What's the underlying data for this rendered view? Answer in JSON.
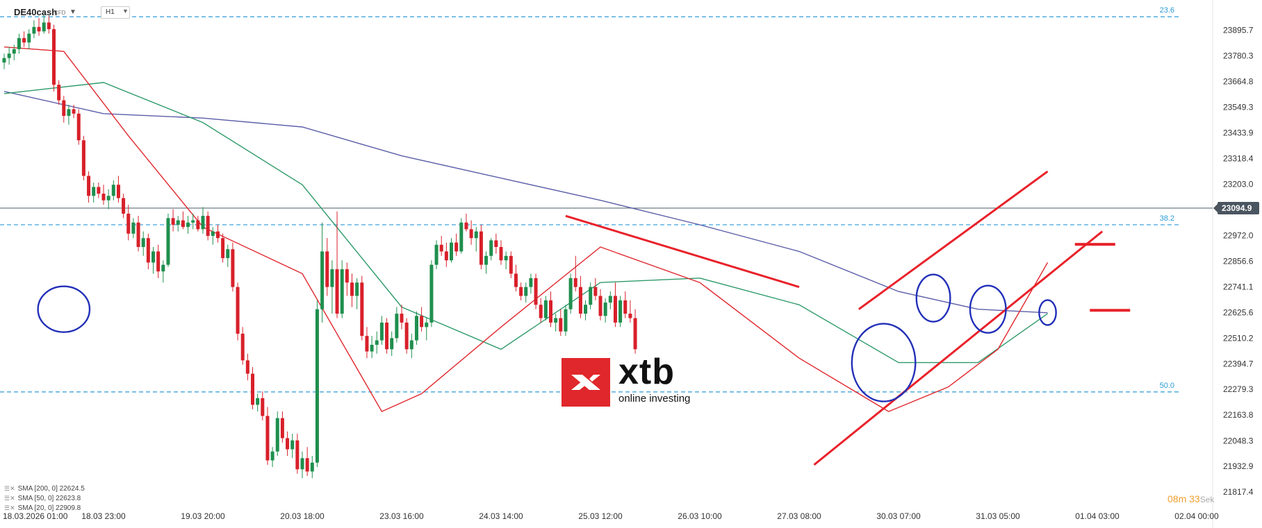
{
  "header": {
    "symbol": "DE40cash",
    "symbol_type": "CFD",
    "timeframe": "H1"
  },
  "legend": [
    {
      "label": "SMA [200, 0] 22624.5",
      "color": "#5a5ea8"
    },
    {
      "label": "SMA [50, 0] 22623.8",
      "color": "#2e9a6a"
    },
    {
      "label": "SMA [20, 0] 22909.8",
      "color": "#e0282e"
    }
  ],
  "timer": {
    "minutes": "08",
    "min_unit": "m",
    "seconds": "33",
    "sec_unit": "Sek"
  },
  "logo": {
    "name": "xtb",
    "tagline": "online investing"
  },
  "chart_data": {
    "type": "candlestick",
    "y_axis": {
      "ticks": [
        "23895.7",
        "23780.3",
        "23664.8",
        "23549.3",
        "23433.9",
        "23318.4",
        "23203.0",
        "23094.9",
        "22972.0",
        "22856.6",
        "22741.1",
        "22625.6",
        "22510.2",
        "22394.7",
        "22279.3",
        "22163.8",
        "22048.3",
        "21932.9",
        "21817.4"
      ],
      "tick_values": [
        23895.7,
        23780.3,
        23664.8,
        23549.3,
        23433.9,
        23318.4,
        23203.0,
        22972.0,
        22856.6,
        22741.1,
        22625.6,
        22510.2,
        22394.7,
        22279.3,
        22163.8,
        22048.3,
        21932.9,
        21817.4
      ],
      "range": [
        21790,
        24000
      ]
    },
    "current_price": {
      "label": "23094.9",
      "value": 23094.9
    },
    "x_axis": {
      "labels": [
        "18.03.2026 01:00",
        "18.03 23:00",
        "19.03 20:00",
        "20.03 18:00",
        "23.03 16:00",
        "24.03 14:00",
        "25.03 12:00",
        "26.03 10:00",
        "27.03 08:00",
        "30.03 07:00",
        "31.03 05:00",
        "01.04 03:00",
        "02.04 00:00"
      ],
      "positions_bar_index": [
        0,
        20,
        40,
        60,
        80,
        100,
        120,
        140,
        160,
        180,
        200,
        220,
        240
      ]
    },
    "fibonacci": [
      {
        "label": "23.6",
        "value": 23956
      },
      {
        "label": "38.2",
        "value": 23020
      },
      {
        "label": "50.0",
        "value": 22268
      }
    ],
    "sma": [
      {
        "name": "SMA [200, 0]",
        "color": "#5a5ea8",
        "points": [
          [
            0,
            23620
          ],
          [
            20,
            23520
          ],
          [
            40,
            23500
          ],
          [
            60,
            23460
          ],
          [
            80,
            23330
          ],
          [
            100,
            23230
          ],
          [
            120,
            23130
          ],
          [
            140,
            23020
          ],
          [
            160,
            22900
          ],
          [
            180,
            22720
          ],
          [
            196,
            22640
          ],
          [
            210,
            22624
          ]
        ]
      },
      {
        "name": "SMA [50, 0]",
        "color": "#2e9a6a",
        "points": [
          [
            0,
            23610
          ],
          [
            20,
            23660
          ],
          [
            40,
            23480
          ],
          [
            60,
            23200
          ],
          [
            80,
            22650
          ],
          [
            100,
            22460
          ],
          [
            120,
            22760
          ],
          [
            140,
            22780
          ],
          [
            160,
            22660
          ],
          [
            180,
            22400
          ],
          [
            196,
            22400
          ],
          [
            210,
            22620
          ]
        ]
      },
      {
        "name": "SMA [20, 0]",
        "color": "#e0282e",
        "points": [
          [
            0,
            23820
          ],
          [
            12,
            23800
          ],
          [
            25,
            23420
          ],
          [
            40,
            23010
          ],
          [
            60,
            22800
          ],
          [
            76,
            22180
          ],
          [
            84,
            22260
          ],
          [
            100,
            22560
          ],
          [
            120,
            22920
          ],
          [
            140,
            22760
          ],
          [
            160,
            22420
          ],
          [
            178,
            22180
          ],
          [
            190,
            22290
          ],
          [
            200,
            22460
          ],
          [
            210,
            22850
          ]
        ]
      }
    ],
    "ohlc": [
      [
        23750,
        23790,
        23720,
        23770
      ],
      [
        23770,
        23820,
        23740,
        23790
      ],
      [
        23790,
        23830,
        23760,
        23810
      ],
      [
        23810,
        23880,
        23790,
        23860
      ],
      [
        23860,
        23890,
        23820,
        23840
      ],
      [
        23840,
        23900,
        23810,
        23880
      ],
      [
        23880,
        23940,
        23860,
        23910
      ],
      [
        23910,
        23950,
        23870,
        23890
      ],
      [
        23890,
        23970,
        23880,
        23930
      ],
      [
        23930,
        23960,
        23880,
        23900
      ],
      [
        23900,
        23920,
        23620,
        23650
      ],
      [
        23650,
        23670,
        23560,
        23580
      ],
      [
        23580,
        23600,
        23480,
        23510
      ],
      [
        23510,
        23560,
        23470,
        23540
      ],
      [
        23540,
        23560,
        23500,
        23520
      ],
      [
        23520,
        23540,
        23380,
        23400
      ],
      [
        23400,
        23420,
        23220,
        23240
      ],
      [
        23240,
        23260,
        23120,
        23150
      ],
      [
        23150,
        23210,
        23120,
        23190
      ],
      [
        23190,
        23210,
        23140,
        23160
      ],
      [
        23160,
        23200,
        23110,
        23130
      ],
      [
        23130,
        23180,
        23090,
        23150
      ],
      [
        23150,
        23220,
        23130,
        23200
      ],
      [
        23200,
        23240,
        23120,
        23140
      ],
      [
        23140,
        23160,
        23050,
        23070
      ],
      [
        23070,
        23110,
        22950,
        22980
      ],
      [
        22980,
        23050,
        22960,
        23030
      ],
      [
        23030,
        23060,
        22900,
        22920
      ],
      [
        22920,
        22990,
        22880,
        22960
      ],
      [
        22960,
        22980,
        22820,
        22850
      ],
      [
        22850,
        22920,
        22800,
        22900
      ],
      [
        22900,
        22930,
        22780,
        22810
      ],
      [
        22810,
        22860,
        22760,
        22840
      ],
      [
        22840,
        23070,
        22830,
        23050
      ],
      [
        23050,
        23090,
        22990,
        23020
      ],
      [
        23020,
        23060,
        22990,
        23040
      ],
      [
        23040,
        23080,
        23000,
        23010
      ],
      [
        23010,
        23060,
        22980,
        23030
      ],
      [
        23030,
        23070,
        23000,
        23040
      ],
      [
        23040,
        23060,
        22990,
        23000
      ],
      [
        23000,
        23100,
        22980,
        23060
      ],
      [
        23060,
        23080,
        22950,
        22970
      ],
      [
        22970,
        23010,
        22930,
        22990
      ],
      [
        22990,
        23020,
        22940,
        22960
      ],
      [
        22960,
        22980,
        22850,
        22870
      ],
      [
        22870,
        22930,
        22830,
        22910
      ],
      [
        22910,
        22940,
        22720,
        22740
      ],
      [
        22740,
        22760,
        22500,
        22530
      ],
      [
        22530,
        22560,
        22390,
        22410
      ],
      [
        22410,
        22440,
        22320,
        22350
      ],
      [
        22350,
        22380,
        22190,
        22210
      ],
      [
        22210,
        22260,
        22180,
        22240
      ],
      [
        22240,
        22270,
        22140,
        22160
      ],
      [
        22160,
        22200,
        21940,
        21960
      ],
      [
        21960,
        22020,
        21930,
        22000
      ],
      [
        22000,
        22180,
        21980,
        22150
      ],
      [
        22150,
        22180,
        22040,
        22060
      ],
      [
        22060,
        22090,
        21980,
        22010
      ],
      [
        22010,
        22080,
        21970,
        22050
      ],
      [
        22050,
        22080,
        21900,
        21920
      ],
      [
        21920,
        22000,
        21880,
        21970
      ],
      [
        21970,
        22020,
        21890,
        21910
      ],
      [
        21910,
        21980,
        21880,
        21950
      ],
      [
        21950,
        22680,
        21930,
        22640
      ],
      [
        22640,
        23030,
        22580,
        22900
      ],
      [
        22900,
        22960,
        22700,
        22740
      ],
      [
        22740,
        22860,
        22620,
        22820
      ],
      [
        22820,
        23080,
        22600,
        22620
      ],
      [
        22620,
        22860,
        22600,
        22820
      ],
      [
        22820,
        22850,
        22700,
        22760
      ],
      [
        22760,
        22800,
        22650,
        22700
      ],
      [
        22700,
        22780,
        22640,
        22760
      ],
      [
        22760,
        22790,
        22500,
        22520
      ],
      [
        22520,
        22560,
        22420,
        22450
      ],
      [
        22450,
        22520,
        22420,
        22480
      ],
      [
        22480,
        22540,
        22440,
        22500
      ],
      [
        22500,
        22610,
        22480,
        22580
      ],
      [
        22580,
        22600,
        22440,
        22460
      ],
      [
        22460,
        22540,
        22430,
        22510
      ],
      [
        22510,
        22650,
        22490,
        22620
      ],
      [
        22620,
        22660,
        22550,
        22580
      ],
      [
        22580,
        22600,
        22440,
        22460
      ],
      [
        22460,
        22530,
        22420,
        22500
      ],
      [
        22500,
        22630,
        22480,
        22610
      ],
      [
        22610,
        22650,
        22540,
        22560
      ],
      [
        22560,
        22600,
        22500,
        22580
      ],
      [
        22580,
        22860,
        22560,
        22840
      ],
      [
        22840,
        22950,
        22820,
        22930
      ],
      [
        22930,
        22970,
        22880,
        22900
      ],
      [
        22900,
        22940,
        22830,
        22860
      ],
      [
        22860,
        22960,
        22850,
        22940
      ],
      [
        22940,
        22980,
        22880,
        22900
      ],
      [
        22900,
        23050,
        22890,
        23030
      ],
      [
        23030,
        23070,
        22990,
        23000
      ],
      [
        23000,
        23040,
        22930,
        22960
      ],
      [
        22960,
        23010,
        22900,
        22990
      ],
      [
        22990,
        23020,
        22820,
        22840
      ],
      [
        22840,
        22900,
        22800,
        22880
      ],
      [
        22880,
        22960,
        22860,
        22950
      ],
      [
        22950,
        22980,
        22890,
        22920
      ],
      [
        22920,
        22950,
        22840,
        22860
      ],
      [
        22860,
        22900,
        22820,
        22880
      ],
      [
        22880,
        22900,
        22780,
        22800
      ],
      [
        22800,
        22840,
        22720,
        22740
      ],
      [
        22740,
        22760,
        22680,
        22700
      ],
      [
        22700,
        22760,
        22670,
        22740
      ],
      [
        22740,
        22800,
        22710,
        22780
      ],
      [
        22780,
        22800,
        22640,
        22660
      ],
      [
        22660,
        22690,
        22580,
        22600
      ],
      [
        22600,
        22700,
        22590,
        22680
      ],
      [
        22680,
        22720,
        22560,
        22580
      ],
      [
        22580,
        22620,
        22540,
        22600
      ],
      [
        22600,
        22640,
        22520,
        22540
      ],
      [
        22540,
        22660,
        22520,
        22640
      ],
      [
        22640,
        22800,
        22620,
        22780
      ],
      [
        22780,
        22880,
        22720,
        22740
      ],
      [
        22740,
        22790,
        22600,
        22620
      ],
      [
        22620,
        22680,
        22590,
        22660
      ],
      [
        22660,
        22760,
        22640,
        22740
      ],
      [
        22740,
        22780,
        22680,
        22700
      ],
      [
        22700,
        22730,
        22590,
        22610
      ],
      [
        22610,
        22690,
        22580,
        22670
      ],
      [
        22670,
        22720,
        22640,
        22700
      ],
      [
        22700,
        22760,
        22560,
        22580
      ],
      [
        22580,
        22700,
        22560,
        22680
      ],
      [
        22680,
        22720,
        22600,
        22620
      ],
      [
        22620,
        22680,
        22580,
        22600
      ],
      [
        22600,
        22640,
        22440,
        22460
      ]
    ],
    "annotations": {
      "downtrend_line": [
        [
          113,
          23060
        ],
        [
          160,
          22740
        ]
      ],
      "channel_upper": [
        [
          172,
          22640
        ],
        [
          210,
          23260
        ]
      ],
      "channel_lower": [
        [
          163,
          21940
        ],
        [
          221,
          22990
        ]
      ],
      "circles": [
        [
          12,
          22640
        ],
        [
          177,
          22400
        ],
        [
          187,
          22690
        ],
        [
          198,
          22640
        ],
        [
          210,
          22625
        ]
      ],
      "markers": [
        [
          212,
          22932
        ],
        [
          215,
          22635
        ]
      ]
    }
  }
}
